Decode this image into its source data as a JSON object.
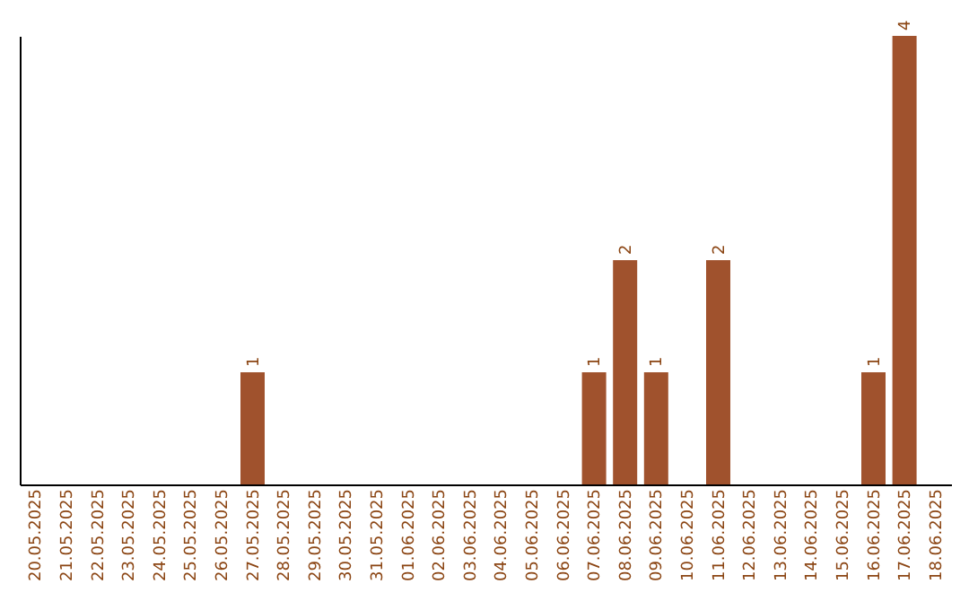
{
  "chart_data": {
    "type": "bar",
    "categories": [
      "20.05.2025",
      "21.05.2025",
      "22.05.2025",
      "23.05.2025",
      "24.05.2025",
      "25.05.2025",
      "26.05.2025",
      "27.05.2025",
      "28.05.2025",
      "29.05.2025",
      "30.05.2025",
      "31.05.2025",
      "01.06.2025",
      "02.06.2025",
      "03.06.2025",
      "04.06.2025",
      "05.06.2025",
      "06.06.2025",
      "07.06.2025",
      "08.06.2025",
      "09.06.2025",
      "10.06.2025",
      "11.06.2025",
      "12.06.2025",
      "13.06.2025",
      "14.06.2025",
      "15.06.2025",
      "16.06.2025",
      "17.06.2025",
      "18.06.2025"
    ],
    "values": [
      0,
      0,
      0,
      0,
      0,
      0,
      0,
      1,
      0,
      0,
      0,
      0,
      0,
      0,
      0,
      0,
      0,
      0,
      1,
      2,
      1,
      0,
      2,
      0,
      0,
      0,
      0,
      1,
      4,
      0
    ],
    "value_labels": [
      null,
      null,
      null,
      null,
      null,
      null,
      null,
      "1",
      null,
      null,
      null,
      null,
      null,
      null,
      null,
      null,
      null,
      null,
      "1",
      "2",
      "1",
      null,
      "2",
      null,
      null,
      null,
      null,
      "1",
      "4",
      null
    ],
    "color": "#a0522d",
    "ylim": [
      0,
      4
    ],
    "tick_labels": "x",
    "grid": false
  }
}
